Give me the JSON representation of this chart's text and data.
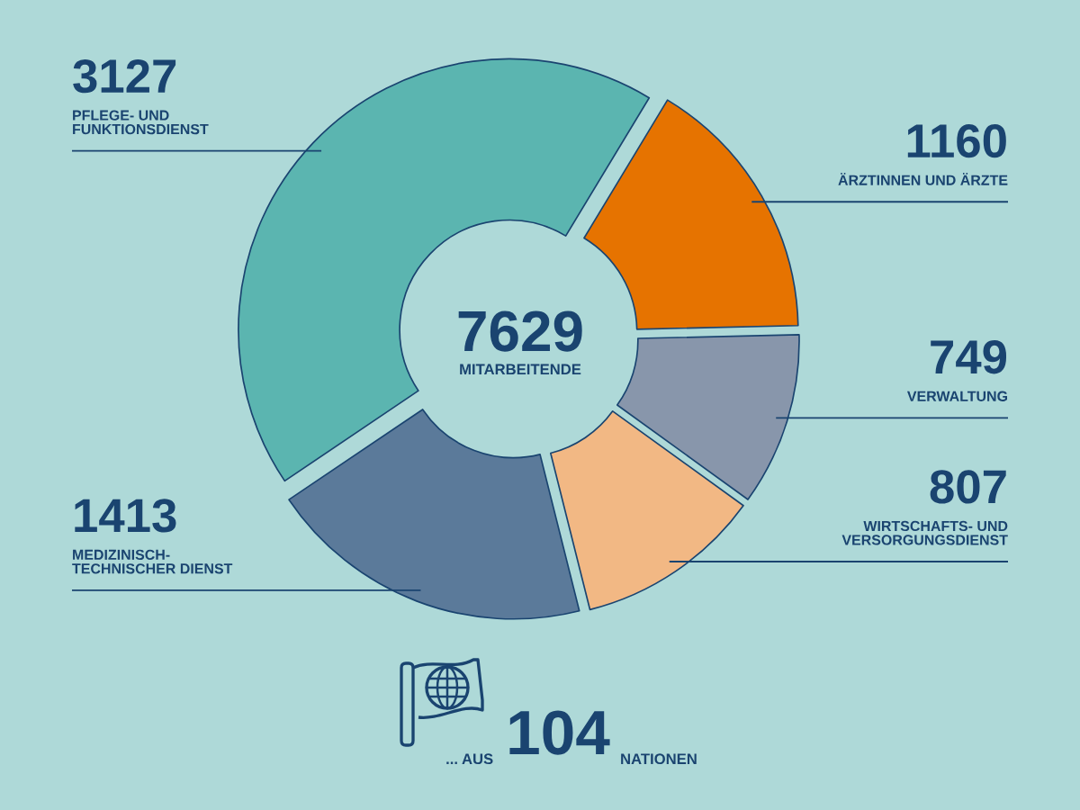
{
  "chart_data": {
    "type": "donut",
    "categories": [
      "PFLEGE- UND\nFUNKTIONSDIENST",
      "ÄRZTINNEN UND ÄRZTE",
      "VERWALTUNG",
      "WIRTSCHAFTS- UND\nVERSORGUNGSDIENST",
      "MEDIZINISCH-\nTECHNISCHER DIENST"
    ],
    "values": [
      3127,
      1160,
      749,
      807,
      1413
    ],
    "colors": [
      "#5bb5b0",
      "#e67300",
      "#8896ab",
      "#f2b884",
      "#5b7a9a"
    ],
    "data_labels": true,
    "annotations": [
      "7629",
      "MITARBEITENDE",
      "... AUS",
      "104",
      "NATIONEN"
    ]
  }
}
